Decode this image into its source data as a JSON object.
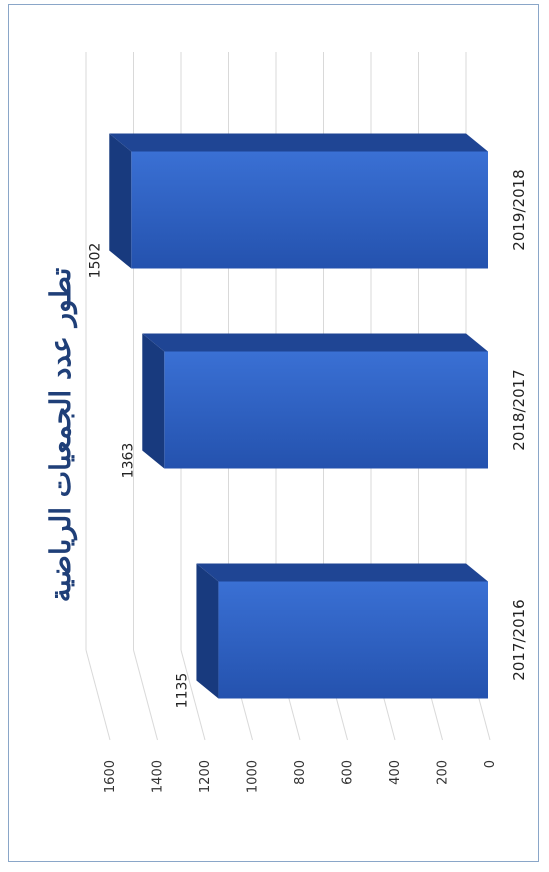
{
  "chart_data": {
    "type": "bar",
    "orientation": "rotated-90",
    "title": "تطور عدد الجمعيات الرياضية",
    "categories": [
      "2017/2016",
      "2018/2017",
      "2019/2018"
    ],
    "values": [
      1135,
      1363,
      1502
    ],
    "data_labels": [
      "1135",
      "1363",
      "1502"
    ],
    "ylim": [
      0,
      1600
    ],
    "ticks": [
      "0",
      "200",
      "400",
      "600",
      "800",
      "1000",
      "1200",
      "1400",
      "1600"
    ],
    "grid": true,
    "legend": "none",
    "colors": {
      "bar_front": "#2f63c7",
      "bar_top": "#1f4594",
      "bar_side": "#183a7e",
      "grid": "#d9d9d9",
      "title": "#1f3f78"
    }
  }
}
